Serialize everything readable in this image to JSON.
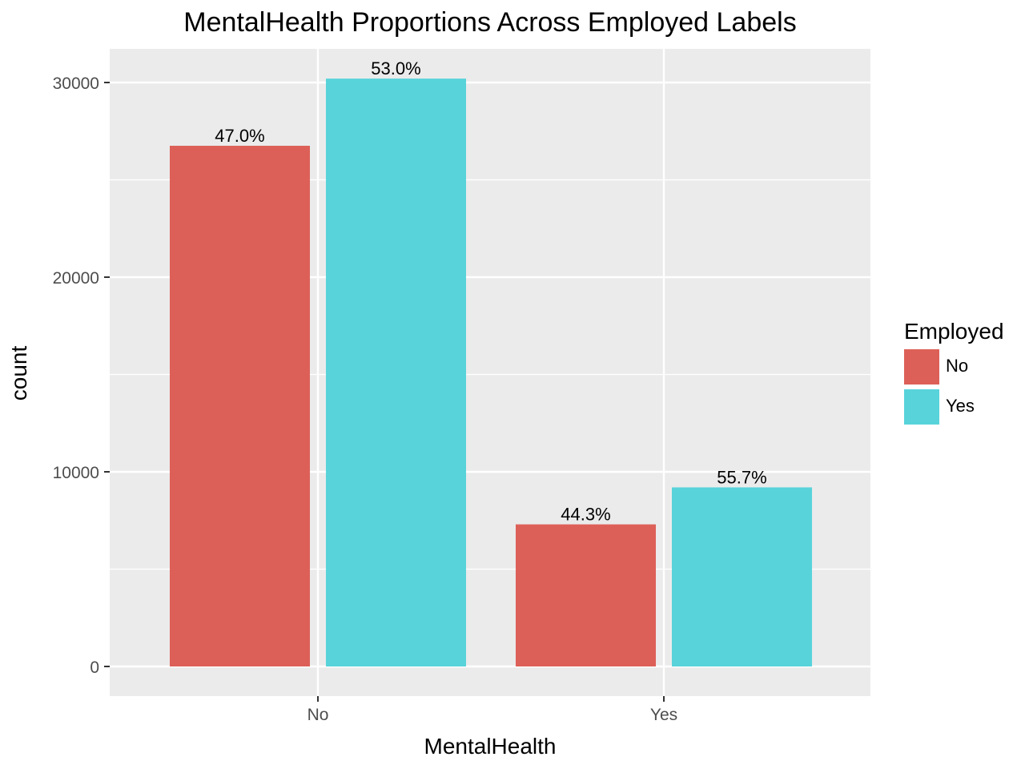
{
  "chart_data": {
    "type": "bar",
    "title": "MentalHealth Proportions Across Employed Labels",
    "xlabel": "MentalHealth",
    "ylabel": "count",
    "categories": [
      "No",
      "Yes"
    ],
    "ylim": [
      -1500,
      31900
    ],
    "yticks": [
      0,
      10000,
      20000,
      30000
    ],
    "grid": true,
    "legend": {
      "title": "Employed",
      "position": "right"
    },
    "series": [
      {
        "name": "No",
        "color": "#DD6058",
        "values": [
          26750,
          7300
        ],
        "labels": [
          "47.0%",
          "44.3%"
        ]
      },
      {
        "name": "Yes",
        "color": "#58D3DA",
        "values": [
          30200,
          9200
        ],
        "labels": [
          "53.0%",
          "55.7%"
        ]
      }
    ]
  }
}
